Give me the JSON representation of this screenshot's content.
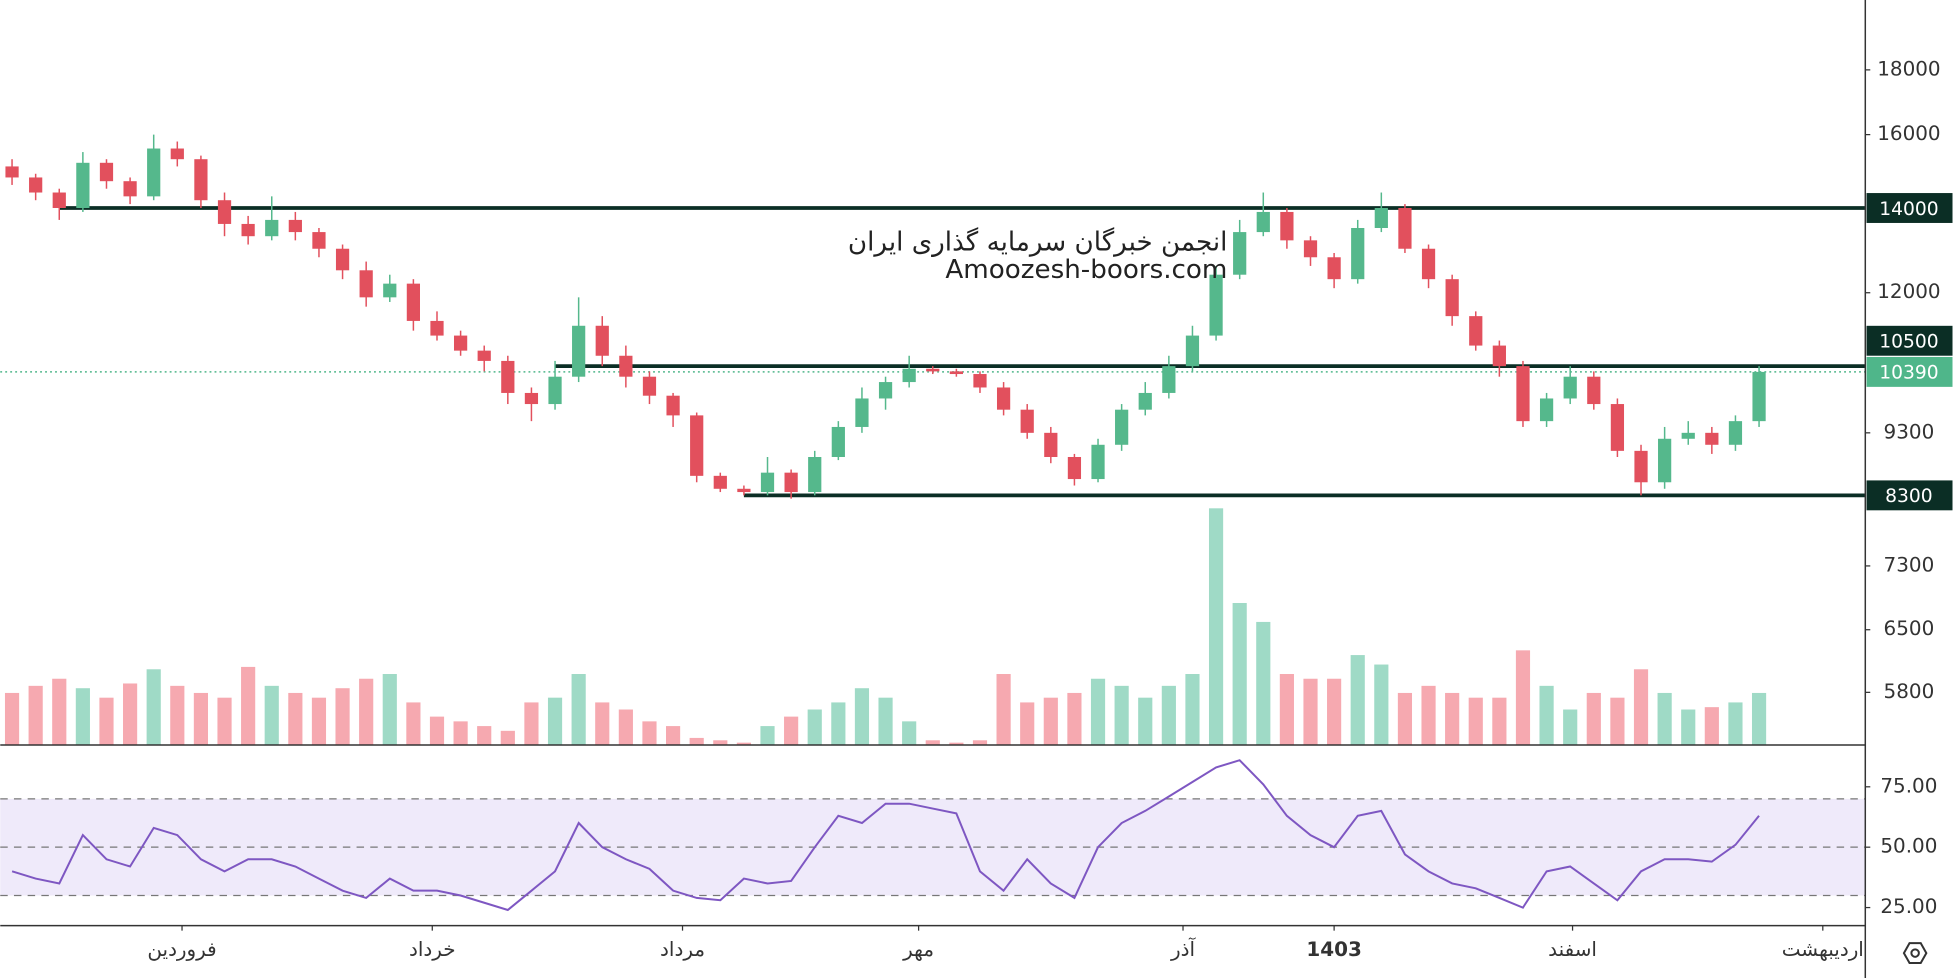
{
  "chart_data": {
    "type": "candlestick",
    "up_color": "#55b88c",
    "down_color": "#e2505d",
    "ohlc": {
      "open": [
        15100,
        14800,
        14400,
        14000,
        15200,
        14700,
        14300,
        15600,
        15300,
        14200,
        13600,
        13300,
        13700,
        13400,
        13000,
        12500,
        11900,
        12200,
        11400,
        11100,
        10800,
        10600,
        10000,
        9800,
        10300,
        11300,
        10700,
        10300,
        9950,
        9600,
        8600,
        8400,
        8350,
        8650,
        8350,
        8900,
        9400,
        9900,
        10200,
        10450,
        10400,
        10350,
        10100,
        9700,
        9300,
        8900,
        8550,
        9100,
        9700,
        10000,
        10500,
        11100,
        12400,
        13400,
        13900,
        13200,
        12800,
        12300,
        13500,
        14000,
        13000,
        12300,
        11500,
        10900,
        10500,
        9500,
        9900,
        10300,
        9800,
        9000,
        8500,
        9200,
        9300,
        9100,
        9500
      ],
      "high": [
        15300,
        14900,
        14500,
        15500,
        15300,
        14800,
        16000,
        15800,
        15400,
        14400,
        13800,
        14300,
        13900,
        13500,
        13100,
        12700,
        12400,
        12300,
        11600,
        11200,
        10900,
        10700,
        10100,
        10600,
        11900,
        11500,
        10900,
        10400,
        10000,
        9650,
        8650,
        8450,
        8900,
        8700,
        9000,
        9500,
        10100,
        10300,
        10700,
        10500,
        10450,
        10400,
        10200,
        9800,
        9400,
        8950,
        9200,
        9800,
        10200,
        10700,
        11300,
        12600,
        13700,
        14400,
        14000,
        13300,
        12900,
        13700,
        14400,
        14100,
        13100,
        12400,
        11600,
        11000,
        10600,
        10000,
        10500,
        10400,
        9900,
        9100,
        9400,
        9500,
        9400,
        9600,
        10500
      ],
      "low": [
        14600,
        14200,
        13700,
        13900,
        14500,
        14100,
        14200,
        15100,
        14000,
        13300,
        13100,
        13200,
        13200,
        12800,
        12300,
        11700,
        11800,
        11200,
        11000,
        10700,
        10400,
        9800,
        9500,
        9700,
        10200,
        10500,
        10100,
        9800,
        9400,
        8500,
        8350,
        8300,
        8300,
        8250,
        8300,
        8850,
        9300,
        9700,
        10100,
        10350,
        10300,
        10000,
        9600,
        9200,
        8800,
        8450,
        8500,
        9000,
        9600,
        9900,
        10400,
        11000,
        12300,
        13300,
        13000,
        12600,
        12100,
        12200,
        13400,
        12900,
        12100,
        11300,
        10800,
        10300,
        9400,
        9400,
        9800,
        9700,
        8900,
        8300,
        8400,
        9100,
        8950,
        9000,
        9400
      ],
      "close": [
        14800,
        14400,
        14000,
        15200,
        14700,
        14300,
        15600,
        15300,
        14200,
        13600,
        13300,
        13700,
        13400,
        13000,
        12500,
        11900,
        12200,
        11400,
        11100,
        10800,
        10600,
        10000,
        9800,
        10300,
        11300,
        10700,
        10300,
        9950,
        9600,
        8600,
        8400,
        8350,
        8650,
        8350,
        8900,
        9400,
        9900,
        10200,
        10450,
        10400,
        10350,
        10100,
        9700,
        9300,
        8900,
        8550,
        9100,
        9700,
        10000,
        10500,
        11100,
        12400,
        13400,
        13900,
        13200,
        12800,
        12300,
        13500,
        14000,
        13000,
        12300,
        11500,
        10900,
        10500,
        9500,
        9900,
        10300,
        9800,
        9000,
        8500,
        9200,
        9300,
        9100,
        9500,
        10390
      ]
    },
    "xlim": [
      -0.5,
      78.5
    ],
    "xticks": [
      {
        "value": 7.2,
        "label": "فروردین"
      },
      {
        "value": 17.8,
        "label": "خرداد"
      },
      {
        "value": 28.4,
        "label": "مرداد"
      },
      {
        "value": 38.4,
        "label": "مهر"
      },
      {
        "value": 49.6,
        "label": "آذر"
      },
      {
        "value": 56.0,
        "label": "1403"
      },
      {
        "value": 66.1,
        "label": "اسفند"
      },
      {
        "value": 76.7,
        "label": "اردیبهشت"
      }
    ],
    "ylim": [
      5270,
      20440
    ],
    "log_scale": true,
    "yticks": [
      18000,
      16000,
      12000,
      9300,
      7300,
      6500,
      5800
    ],
    "levels": [
      {
        "value": 14000,
        "from": 2
      },
      {
        "value": 10500,
        "from": 23
      },
      {
        "value": 8300,
        "from": 31
      }
    ],
    "level_color": "#0b2e25",
    "last_price": 10390,
    "last_price_color": "#4fb68a",
    "annotations": [
      "انجمن خبرگان سرمایه گذاری ایران",
      "Amoozesh-boors.com"
    ],
    "volume": {
      "values": [
        22,
        25,
        28,
        24,
        20,
        26,
        32,
        25,
        22,
        20,
        33,
        25,
        22,
        20,
        24,
        28,
        30,
        18,
        12,
        10,
        8,
        6,
        18,
        20,
        30,
        18,
        15,
        10,
        8,
        3,
        2,
        1,
        8,
        12,
        15,
        18,
        24,
        20,
        10,
        2,
        1,
        2,
        30,
        18,
        20,
        22,
        28,
        25,
        20,
        25,
        30,
        100,
        60,
        52,
        30,
        28,
        28,
        38,
        34,
        22,
        25,
        22,
        20,
        20,
        40,
        25,
        15,
        22,
        20,
        32,
        22,
        15,
        16,
        18,
        22
      ],
      "ylim": [
        0,
        100
      ],
      "up_color": "#9fdac6",
      "down_color": "#f6a9b0"
    },
    "rsi": {
      "values": [
        40,
        37,
        35,
        55,
        45,
        42,
        58,
        55,
        45,
        40,
        45,
        45,
        42,
        37,
        32,
        29,
        37,
        32,
        32,
        30,
        27,
        24,
        32,
        40,
        60,
        50,
        45,
        41,
        32,
        29,
        28,
        37,
        35,
        36,
        50,
        63,
        60,
        68,
        68,
        66,
        64,
        40,
        32,
        45,
        35,
        29,
        50,
        60,
        65,
        71,
        77,
        83,
        86,
        76,
        63,
        55,
        50,
        63,
        65,
        47,
        40,
        35,
        33,
        29,
        25,
        40,
        42,
        35,
        28,
        40,
        45,
        45,
        44,
        51,
        63
      ],
      "ylim": [
        17.5,
        92.3
      ],
      "yticks": [
        {
          "value": 75,
          "label": "75.00"
        },
        {
          "value": 50,
          "label": "50.00"
        },
        {
          "value": 25,
          "label": "25.00"
        }
      ],
      "band": [
        30,
        70
      ],
      "midline": 50,
      "color": "#7e57c2",
      "band_color": "#efeafa"
    }
  }
}
